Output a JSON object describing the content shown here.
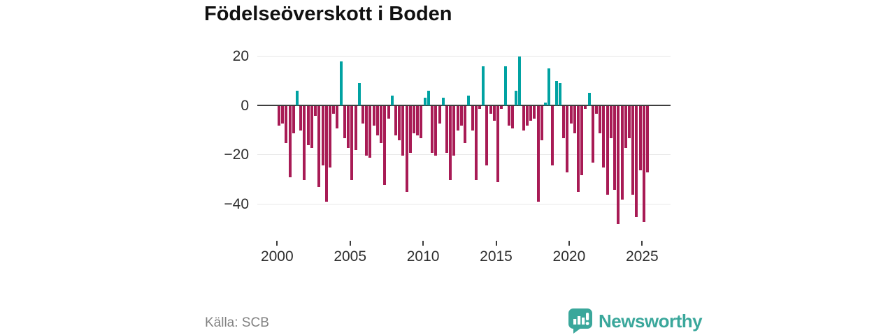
{
  "title": "Födelseöverskott i Boden",
  "source": "Källa: SCB",
  "logo": {
    "icon": "newsworthy-speech-bubble-bar-chart-icon",
    "text": "Newsworthy"
  },
  "colors": {
    "positive": "#00a2a2",
    "negative": "#a81b55",
    "brand": "#3aa79b",
    "grid": "#e8e8e8",
    "axis": "#3d3d3d",
    "text": "#2d2d2d",
    "muted": "#828282"
  },
  "chart_data": {
    "type": "bar",
    "title": "Födelseöverskott i Boden",
    "frequency": "quarterly",
    "start": "2000Q1",
    "end": "2025Q2",
    "values": [
      -8,
      -7,
      -15,
      -29,
      -11,
      6,
      -10,
      -30,
      -16,
      -17,
      -4,
      -33,
      -24,
      -39,
      -25,
      -3,
      -9,
      18,
      -13,
      -17,
      -30,
      -18,
      9,
      -7,
      -20,
      -21,
      -8,
      -12,
      -15,
      -32,
      -5,
      4,
      -12,
      -14,
      -20,
      -35,
      -19,
      -11,
      -12,
      -13,
      3,
      6,
      -19,
      -20,
      -7,
      3,
      -19,
      -30,
      -20,
      -10,
      -8,
      -15,
      4,
      -10,
      -30,
      -1,
      16,
      -24,
      -3,
      -6,
      -31,
      -1,
      16,
      -8,
      -9,
      6,
      20,
      -10,
      -8,
      -6,
      -5,
      -39,
      -14,
      1,
      15,
      -24,
      10,
      9,
      -13,
      -27,
      -7,
      -11,
      -35,
      -28,
      -1,
      5,
      -23,
      -3,
      -11,
      -25,
      -36,
      -13,
      -34,
      -48,
      -38,
      -17,
      -13,
      -36,
      -45,
      -26,
      -47,
      -27
    ],
    "y_ticks": [
      20,
      0,
      -20,
      -40
    ],
    "y_tick_labels": [
      "20",
      "0",
      "−20",
      "−40"
    ],
    "x_ticks": [
      2000,
      2005,
      2010,
      2015,
      2020,
      2025
    ],
    "x_tick_labels": [
      "2000",
      "2005",
      "2010",
      "2015",
      "2020",
      "2025"
    ],
    "ylim": [
      -50,
      22
    ],
    "grid": "horizontal",
    "legend": "none",
    "positive_color": "#00a2a2",
    "negative_color": "#a81b55"
  }
}
